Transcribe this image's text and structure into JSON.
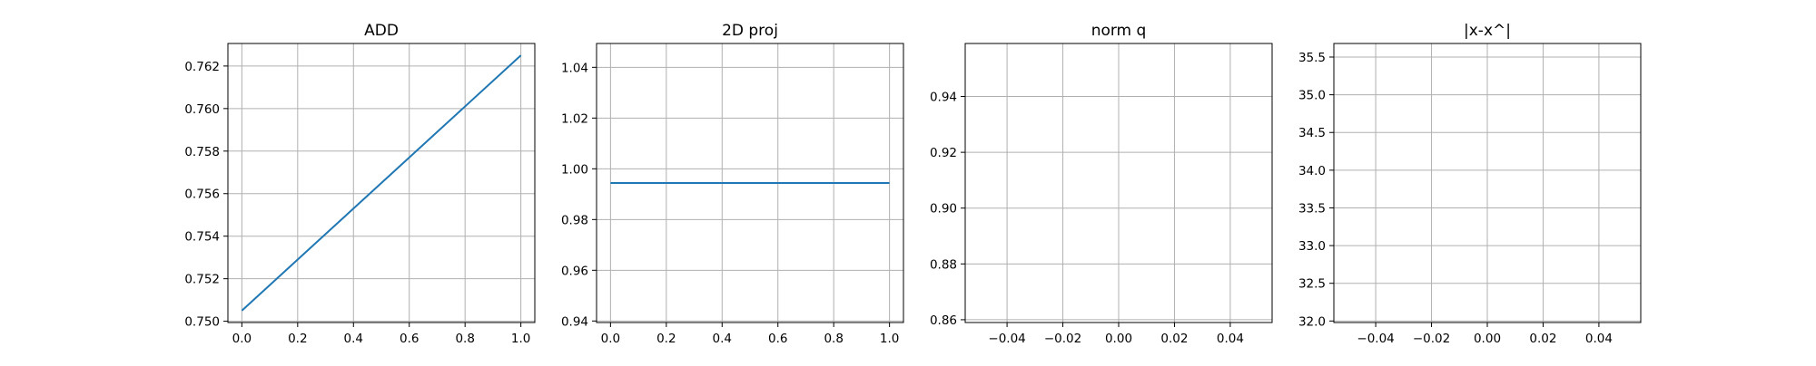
{
  "colors": {
    "line": "#1f77b4",
    "grid": "#b0b0b0",
    "axis": "#000000",
    "background": "#ffffff"
  },
  "chart_data": [
    {
      "type": "line",
      "title": "ADD",
      "xlabel": "",
      "ylabel": "",
      "grid": true,
      "xlim": [
        -0.05,
        1.05
      ],
      "ylim": [
        0.74994,
        0.76306
      ],
      "xticks": [
        0.0,
        0.2,
        0.4,
        0.6,
        0.8,
        1.0
      ],
      "xtick_labels": [
        "0.0",
        "0.2",
        "0.4",
        "0.6",
        "0.8",
        "1.0"
      ],
      "yticks": [
        0.75,
        0.752,
        0.754,
        0.756,
        0.758,
        0.76,
        0.762
      ],
      "ytick_labels": [
        "0.750",
        "0.752",
        "0.754",
        "0.756",
        "0.758",
        "0.760",
        "0.762"
      ],
      "series": [
        {
          "x": [
            0.0,
            1.0
          ],
          "y": [
            0.7505,
            0.7625
          ]
        }
      ]
    },
    {
      "type": "line",
      "title": "2D proj",
      "xlabel": "",
      "ylabel": "",
      "grid": true,
      "xlim": [
        -0.05,
        1.05
      ],
      "ylim": [
        0.9394,
        1.0494
      ],
      "xticks": [
        0.0,
        0.2,
        0.4,
        0.6,
        0.8,
        1.0
      ],
      "xtick_labels": [
        "0.0",
        "0.2",
        "0.4",
        "0.6",
        "0.8",
        "1.0"
      ],
      "yticks": [
        0.94,
        0.96,
        0.98,
        1.0,
        1.02,
        1.04
      ],
      "ytick_labels": [
        "0.94",
        "0.96",
        "0.98",
        "1.00",
        "1.02",
        "1.04"
      ],
      "series": [
        {
          "x": [
            0.0,
            1.0
          ],
          "y": [
            0.9944,
            0.9944
          ]
        }
      ]
    },
    {
      "type": "line",
      "title": "norm q",
      "xlabel": "",
      "ylabel": "",
      "grid": true,
      "xlim": [
        -0.055,
        0.055
      ],
      "ylim": [
        0.859,
        0.959
      ],
      "xticks": [
        -0.04,
        -0.02,
        0.0,
        0.02,
        0.04
      ],
      "xtick_labels": [
        "−0.04",
        "−0.02",
        "0.00",
        "0.02",
        "0.04"
      ],
      "yticks": [
        0.86,
        0.88,
        0.9,
        0.92,
        0.94
      ],
      "ytick_labels": [
        "0.86",
        "0.88",
        "0.90",
        "0.92",
        "0.94"
      ],
      "series": []
    },
    {
      "type": "line",
      "title": "|x-x^|",
      "xlabel": "",
      "ylabel": "",
      "grid": true,
      "xlim": [
        -0.055,
        0.055
      ],
      "ylim": [
        31.98,
        35.68
      ],
      "xticks": [
        -0.04,
        -0.02,
        0.0,
        0.02,
        0.04
      ],
      "xtick_labels": [
        "−0.04",
        "−0.02",
        "0.00",
        "0.02",
        "0.04"
      ],
      "yticks": [
        32.0,
        32.5,
        33.0,
        33.5,
        34.0,
        34.5,
        35.0,
        35.5
      ],
      "ytick_labels": [
        "32.0",
        "32.5",
        "33.0",
        "33.5",
        "34.0",
        "34.5",
        "35.0",
        "35.5"
      ],
      "series": []
    }
  ]
}
